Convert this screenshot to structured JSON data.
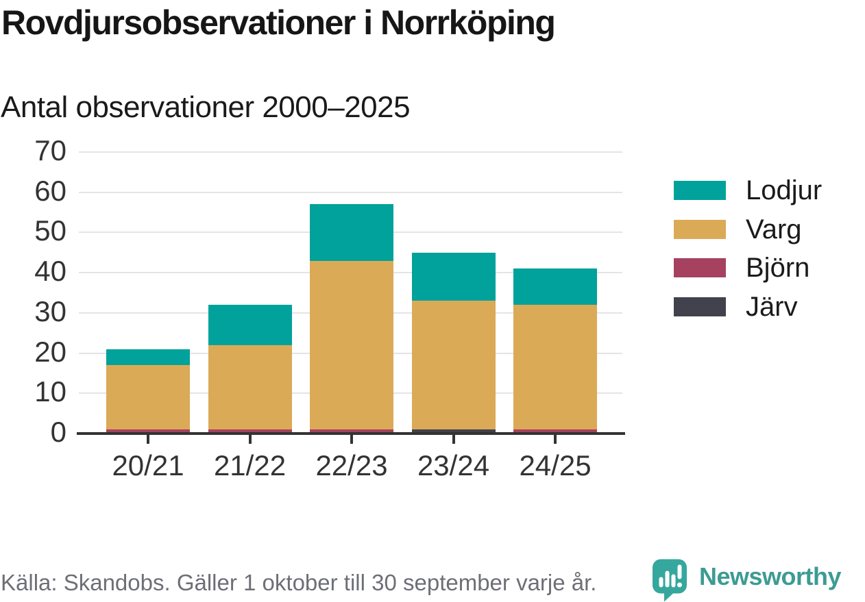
{
  "header": {
    "title": "Rovdjursobservationer i Norrköping",
    "subtitle": "Antal observationer 2000–2025"
  },
  "chart_data": {
    "type": "bar",
    "stacked": true,
    "title": "Rovdjursobservationer i Norrköping",
    "subtitle": "Antal observationer 2000–2025",
    "categories": [
      "20/21",
      "21/22",
      "22/23",
      "23/24",
      "24/25"
    ],
    "series": [
      {
        "name": "Lodjur",
        "color": "#00A29B",
        "values": [
          4,
          10,
          14,
          12,
          9
        ]
      },
      {
        "name": "Varg",
        "color": "#DBAA57",
        "values": [
          16,
          21,
          42,
          32,
          31
        ]
      },
      {
        "name": "Björn",
        "color": "#A64160",
        "values": [
          1,
          1,
          1,
          0,
          1
        ]
      },
      {
        "name": "Järv",
        "color": "#42414E",
        "values": [
          0,
          0,
          0,
          1,
          0
        ]
      }
    ],
    "stack_order_bottom_to_top": [
      "Järv",
      "Björn",
      "Varg",
      "Lodjur"
    ],
    "totals": [
      21,
      32,
      57,
      45,
      41
    ],
    "ylim": [
      0,
      70
    ],
    "yticks": [
      0,
      10,
      20,
      30,
      40,
      50,
      60,
      70
    ],
    "grid": "horizontal-light",
    "legend_position": "right",
    "legend_order": [
      "Lodjur",
      "Varg",
      "Björn",
      "Järv"
    ]
  },
  "footer": {
    "source": "Källa: Skandobs. Gäller 1 oktober till 30 september varje år.",
    "brand": "Newsworthy"
  },
  "style": {
    "background": "#FFFFFF",
    "title_color": "#161616",
    "text_color": "#1A1A1A",
    "tick_label_color": "#333333",
    "axis_color": "#333333",
    "grid_color": "#E4E4E4",
    "footer_color": "#6E6E78",
    "brand_color": "#3D9B93",
    "brand_icon_color": "#36A79C"
  }
}
